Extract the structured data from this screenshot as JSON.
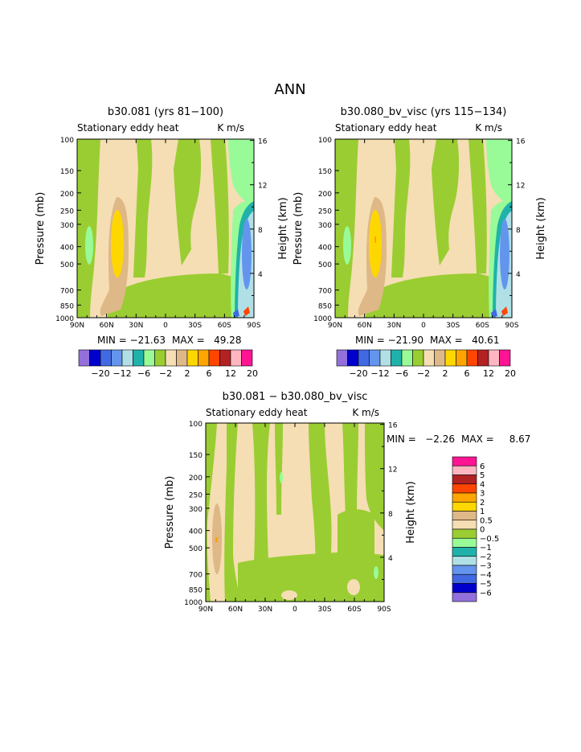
{
  "page": {
    "title": "ANN"
  },
  "palette": {
    "colors": [
      "#9370DB",
      "#0000CD",
      "#4169E1",
      "#6495ED",
      "#B0E0E6",
      "#20B2AA",
      "#98FB98",
      "#9ACD32",
      "#F5DEB3",
      "#DEB887",
      "#FFD700",
      "#FFA500",
      "#FF4500",
      "#B22222",
      "#FFB6C1",
      "#FF1493"
    ]
  },
  "chart_data": [
    {
      "type": "heatmap",
      "title": "b30.081 (yrs 81−100)",
      "subtitle_left": "Stationary eddy heat",
      "subtitle_right": "K m/s",
      "ylabel": "Pressure (mb)",
      "ylabel_right": "Height (km)",
      "x_ticks": [
        "90N",
        "60N",
        "30N",
        "0",
        "30S",
        "60S",
        "90S"
      ],
      "y_ticks": [
        100,
        150,
        200,
        250,
        300,
        400,
        500,
        700,
        850,
        1000
      ],
      "y_right_ticks": [
        16,
        12,
        8,
        4
      ],
      "min_text": "MIN = −21.63",
      "max_text": "MAX =   49.28",
      "levels": [
        -20,
        -12,
        -6,
        -2,
        2,
        6,
        12,
        20
      ]
    },
    {
      "type": "heatmap",
      "title": "b30.080_bv_visc (yrs 115−134)",
      "subtitle_left": "Stationary eddy heat",
      "subtitle_right": "K m/s",
      "ylabel": "Pressure (mb)",
      "ylabel_right": "Height (km)",
      "x_ticks": [
        "90N",
        "60N",
        "30N",
        "0",
        "30S",
        "60S",
        "90S"
      ],
      "y_ticks": [
        100,
        150,
        200,
        250,
        300,
        400,
        500,
        700,
        850,
        1000
      ],
      "y_right_ticks": [
        16,
        12,
        8,
        4
      ],
      "min_text": "MIN = −21.90",
      "max_text": "MAX =   40.61",
      "levels": [
        -20,
        -12,
        -6,
        -2,
        2,
        6,
        12,
        20
      ]
    },
    {
      "type": "heatmap",
      "title": "b30.081 − b30.080_bv_visc",
      "subtitle_left": "Stationary eddy heat",
      "subtitle_right": "K m/s",
      "ylabel": "Pressure (mb)",
      "ylabel_right": "Height (km)",
      "x_ticks": [
        "90N",
        "60N",
        "30N",
        "0",
        "30S",
        "60S",
        "90S"
      ],
      "y_ticks": [
        100,
        150,
        200,
        250,
        300,
        400,
        500,
        700,
        850,
        1000
      ],
      "y_right_ticks": [
        16,
        12,
        8,
        4
      ],
      "min_text": "MIN =   −2.26",
      "max_text": "MAX =     8.67",
      "levels": [
        "6",
        "5",
        "4",
        "3",
        "2",
        "1",
        "0.5",
        "0",
        "−0.5",
        "−1",
        "−2",
        "−3",
        "−4",
        "−5",
        "−6"
      ]
    }
  ]
}
